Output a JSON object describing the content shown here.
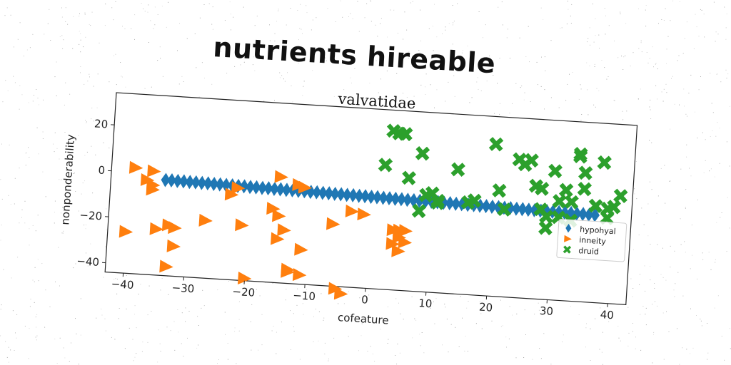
{
  "title": "nutrients hireable",
  "chart_data": {
    "type": "scatter",
    "subtitle": "valvatidae",
    "xlabel": "cofeature",
    "ylabel": "nonponderability",
    "xlim": [
      -43,
      43
    ],
    "ylim": [
      -44,
      34
    ],
    "xticks": [
      -40,
      -30,
      -20,
      -10,
      0,
      10,
      20,
      30,
      40
    ],
    "yticks": [
      -40,
      -20,
      0,
      20
    ],
    "xtick_labels": [
      "−40",
      "−30",
      "−20",
      "−10",
      "0",
      "10",
      "20",
      "30",
      "40"
    ],
    "ytick_labels": [
      "−40",
      "−20",
      "0",
      "20"
    ],
    "grid": false,
    "legend_position": "right",
    "series": [
      {
        "name": "hypohyal",
        "marker": "diamond",
        "color": "#1f77b4",
        "x": [
          -34,
          -33,
          -32,
          -31,
          -30,
          -29,
          -28,
          -27,
          -26,
          -25,
          -24,
          -23,
          -22,
          -21,
          -20,
          -19,
          -18,
          -17,
          -16,
          -15,
          -14,
          -13,
          -12,
          -11,
          -10,
          -9,
          -8,
          -7,
          -6,
          -5,
          -4,
          -3,
          -2,
          -1,
          0,
          1,
          2,
          3,
          4,
          5,
          6,
          7,
          8,
          9,
          10,
          11,
          12,
          13,
          14,
          15,
          16,
          17,
          18,
          19,
          20,
          21,
          22,
          23,
          24,
          25,
          26,
          27,
          28,
          29,
          30,
          31,
          32,
          33,
          34,
          35,
          36,
          37
        ],
        "y": [
          -2.5,
          -2.5,
          -2.6,
          -2.6,
          -2.7,
          -2.7,
          -2.8,
          -2.8,
          -2.9,
          -2.9,
          -3.0,
          -3.0,
          -3.1,
          -3.1,
          -3.2,
          -3.2,
          -3.3,
          -3.3,
          -3.4,
          -3.4,
          -3.5,
          -3.5,
          -3.6,
          -3.6,
          -3.7,
          -3.7,
          -3.8,
          -3.8,
          -3.9,
          -3.9,
          -4.0,
          -4.0,
          -4.1,
          -4.1,
          -4.2,
          -4.2,
          -4.3,
          -4.3,
          -4.4,
          -4.4,
          -4.5,
          -4.5,
          -4.6,
          -4.6,
          -4.7,
          -4.7,
          -4.8,
          -4.8,
          -4.9,
          -4.9,
          -5.0,
          -5.0,
          -5.1,
          -5.1,
          -5.2,
          -5.2,
          -5.3,
          -5.3,
          -5.4,
          -5.4,
          -5.5,
          -5.5,
          -5.6,
          -5.6,
          -5.7,
          -5.7,
          -5.8,
          -5.8,
          -5.9,
          -5.9,
          -6.0,
          -6.0
        ]
      },
      {
        "name": "inneity",
        "marker": "triangle-right",
        "color": "#ff7f0e",
        "x": [
          -39,
          -36,
          -37,
          -36,
          -36,
          -40,
          -35,
          -33,
          -32,
          -32,
          -33,
          -27,
          -23,
          -22,
          -21,
          -20,
          -16,
          -15,
          -15,
          -14,
          -13,
          -15,
          -13,
          -11,
          -12,
          -11,
          -11,
          -6,
          -5,
          -4,
          -3,
          -1,
          4,
          4,
          5,
          5,
          5,
          6,
          6
        ],
        "y": [
          2,
          1,
          -3,
          -5,
          -7,
          -26,
          -24,
          -22,
          -23,
          -31,
          -40,
          -19,
          -7,
          -4,
          -20,
          -43,
          -12,
          -15,
          -25,
          -21,
          -38,
          2,
          -39,
          -29,
          -1,
          -2,
          -40,
          -17,
          -45,
          -47,
          -11,
          -12,
          -24,
          -18,
          -18,
          -21,
          -27,
          -23,
          -18
        ]
      },
      {
        "name": "druid",
        "marker": "x",
        "color": "#2ca02c",
        "x": [
          2,
          3,
          4,
          5,
          5,
          6,
          8,
          9,
          8,
          10,
          11,
          11,
          14,
          16,
          17,
          20,
          21,
          22,
          24,
          25,
          26,
          27,
          28,
          29,
          29,
          30,
          31,
          32,
          33,
          34,
          34,
          35,
          35,
          37,
          38,
          39,
          39,
          40,
          41,
          31,
          28,
          33
        ],
        "y": [
          10,
          25,
          24,
          24,
          24,
          5,
          16,
          -2,
          -9,
          -1,
          -5,
          -4,
          10,
          -4,
          -3,
          22,
          2,
          -6,
          16,
          14,
          16,
          5,
          4,
          -8,
          -13,
          12,
          -8,
          4,
          -9,
          20,
          19,
          12,
          5,
          -2,
          17,
          -3,
          -7,
          -2,
          3,
          -1,
          -5,
          -1
        ]
      }
    ]
  }
}
